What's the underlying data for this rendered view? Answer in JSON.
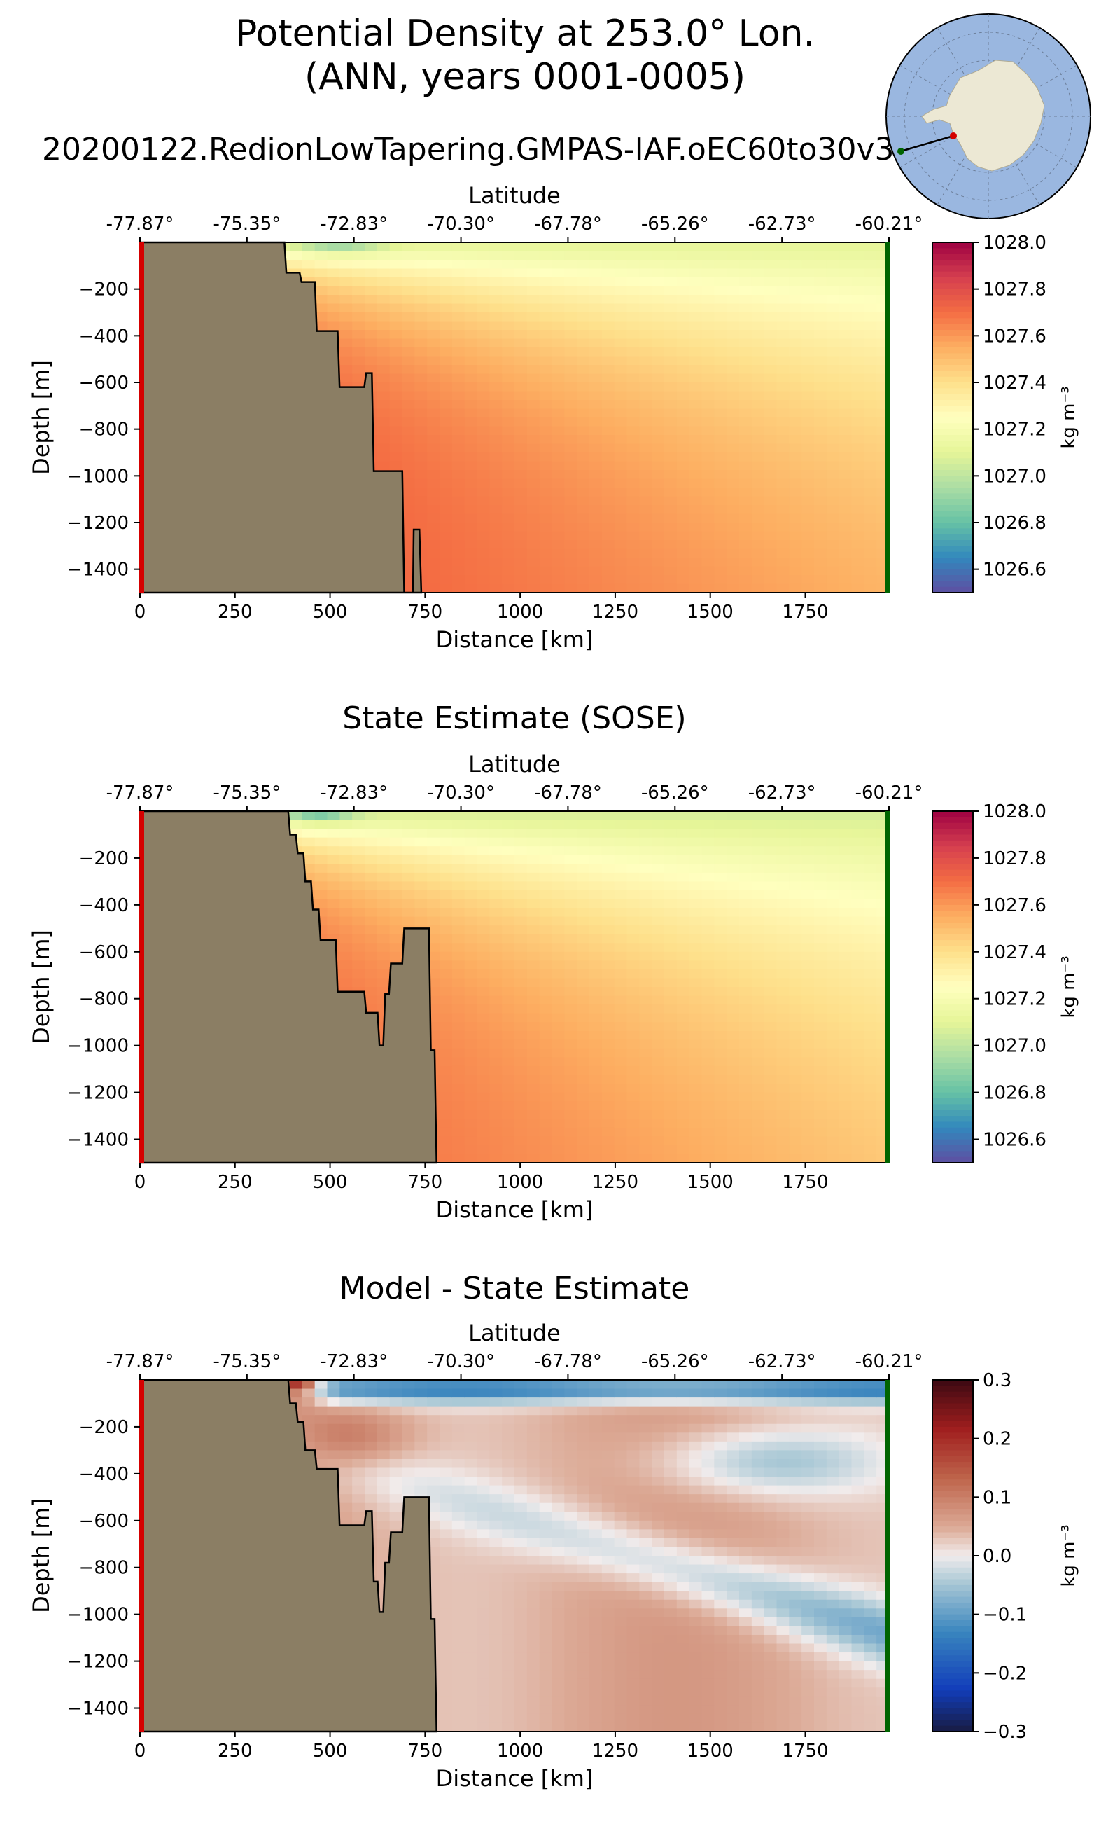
{
  "figure": {
    "title_line1": "Potential Density at 253.0° Lon.",
    "title_line2": "(ANN, years 0001-0005)",
    "run_name": "20200122.RedionLowTapering.GMPAS-IAF.oEC60to30v3"
  },
  "colors": {
    "land": "#8b7e64",
    "start_marker": "#d40000",
    "end_marker": "#006400",
    "inset_ocean": "#9ab7e0",
    "inset_land": "#ece8d4"
  },
  "chart_data": [
    {
      "type": "heatmap",
      "title": "",
      "xlabel": "Distance [km]",
      "ylabel": "Depth [m]",
      "top_axis_label": "Latitude",
      "colorbar_label": "kg m⁻³",
      "colormap": "Spectral_r",
      "xlim": [
        0,
        1970
      ],
      "ylim": [
        -1500,
        0
      ],
      "x_ticks": [
        0,
        250,
        500,
        750,
        1000,
        1250,
        1500,
        1750
      ],
      "y_ticks": [
        -200,
        -400,
        -600,
        -800,
        -1000,
        -1200,
        -1400
      ],
      "lat_ticks": [
        "-77.87°",
        "-75.35°",
        "-72.83°",
        "-70.30°",
        "-67.78°",
        "-65.26°",
        "-62.73°",
        "-60.21°"
      ],
      "colorbar_ticks": [
        1028.0,
        1027.8,
        1027.6,
        1027.4,
        1027.2,
        1027.0,
        1026.8,
        1026.6
      ],
      "vmin": 1026.5,
      "vmax": 1028.0,
      "bathymetry": [
        [
          0,
          0
        ],
        [
          380,
          0
        ],
        [
          385,
          -130
        ],
        [
          420,
          -130
        ],
        [
          425,
          -170
        ],
        [
          460,
          -170
        ],
        [
          465,
          -380
        ],
        [
          520,
          -380
        ],
        [
          525,
          -620
        ],
        [
          590,
          -620
        ],
        [
          595,
          -560
        ],
        [
          610,
          -560
        ],
        [
          615,
          -980
        ],
        [
          690,
          -980
        ],
        [
          695,
          -1500
        ],
        [
          718,
          -1500
        ],
        [
          720,
          -1230
        ],
        [
          735,
          -1230
        ],
        [
          740,
          -1500
        ],
        [
          0,
          -1500
        ]
      ]
    },
    {
      "type": "heatmap",
      "title": "State Estimate (SOSE)",
      "xlabel": "Distance [km]",
      "ylabel": "Depth [m]",
      "top_axis_label": "Latitude",
      "colorbar_label": "kg m⁻³",
      "colormap": "Spectral_r",
      "xlim": [
        0,
        1970
      ],
      "ylim": [
        -1500,
        0
      ],
      "x_ticks": [
        0,
        250,
        500,
        750,
        1000,
        1250,
        1500,
        1750
      ],
      "y_ticks": [
        -200,
        -400,
        -600,
        -800,
        -1000,
        -1200,
        -1400
      ],
      "lat_ticks": [
        "-77.87°",
        "-75.35°",
        "-72.83°",
        "-70.30°",
        "-67.78°",
        "-65.26°",
        "-62.73°",
        "-60.21°"
      ],
      "colorbar_ticks": [
        1028.0,
        1027.8,
        1027.6,
        1027.4,
        1027.2,
        1027.0,
        1026.8,
        1026.6
      ],
      "vmin": 1026.5,
      "vmax": 1028.0,
      "bathymetry": [
        [
          0,
          0
        ],
        [
          390,
          0
        ],
        [
          395,
          -100
        ],
        [
          410,
          -100
        ],
        [
          415,
          -180
        ],
        [
          430,
          -180
        ],
        [
          435,
          -300
        ],
        [
          450,
          -300
        ],
        [
          455,
          -420
        ],
        [
          470,
          -420
        ],
        [
          475,
          -550
        ],
        [
          515,
          -550
        ],
        [
          520,
          -770
        ],
        [
          590,
          -770
        ],
        [
          595,
          -860
        ],
        [
          625,
          -860
        ],
        [
          630,
          -1000
        ],
        [
          640,
          -1000
        ],
        [
          645,
          -780
        ],
        [
          655,
          -780
        ],
        [
          660,
          -650
        ],
        [
          690,
          -650
        ],
        [
          695,
          -500
        ],
        [
          760,
          -500
        ],
        [
          765,
          -1020
        ],
        [
          775,
          -1020
        ],
        [
          780,
          -1500
        ],
        [
          0,
          -1500
        ]
      ]
    },
    {
      "type": "heatmap",
      "title": "Model - State Estimate",
      "xlabel": "Distance [km]",
      "ylabel": "Depth [m]",
      "top_axis_label": "Latitude",
      "colorbar_label": "kg m⁻³",
      "colormap": "balance",
      "xlim": [
        0,
        1970
      ],
      "ylim": [
        -1500,
        0
      ],
      "x_ticks": [
        0,
        250,
        500,
        750,
        1000,
        1250,
        1500,
        1750
      ],
      "y_ticks": [
        -200,
        -400,
        -600,
        -800,
        -1000,
        -1200,
        -1400
      ],
      "lat_ticks": [
        "-77.87°",
        "-75.35°",
        "-72.83°",
        "-70.30°",
        "-67.78°",
        "-65.26°",
        "-62.73°",
        "-60.21°"
      ],
      "colorbar_ticks": [
        0.3,
        0.2,
        0.1,
        0.0,
        -0.1,
        -0.2,
        -0.3
      ],
      "colorbar_tick_labels": [
        "0.3",
        "0.2",
        "0.1",
        "0.0",
        "−0.1",
        "−0.2",
        "−0.3"
      ],
      "vmin": -0.3,
      "vmax": 0.3,
      "bathymetry": [
        [
          0,
          0
        ],
        [
          390,
          0
        ],
        [
          395,
          -100
        ],
        [
          410,
          -100
        ],
        [
          415,
          -180
        ],
        [
          430,
          -180
        ],
        [
          435,
          -300
        ],
        [
          460,
          -300
        ],
        [
          465,
          -380
        ],
        [
          520,
          -380
        ],
        [
          525,
          -620
        ],
        [
          590,
          -620
        ],
        [
          595,
          -560
        ],
        [
          610,
          -560
        ],
        [
          615,
          -860
        ],
        [
          625,
          -860
        ],
        [
          630,
          -990
        ],
        [
          640,
          -990
        ],
        [
          645,
          -780
        ],
        [
          655,
          -780
        ],
        [
          660,
          -650
        ],
        [
          690,
          -650
        ],
        [
          695,
          -500
        ],
        [
          760,
          -500
        ],
        [
          765,
          -1020
        ],
        [
          775,
          -1020
        ],
        [
          780,
          -1500
        ],
        [
          0,
          -1500
        ]
      ]
    }
  ]
}
